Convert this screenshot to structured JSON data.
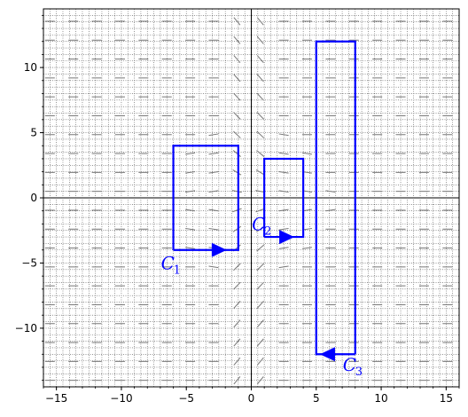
{
  "chart_data": {
    "type": "line",
    "title": "",
    "xlabel": "",
    "ylabel": "",
    "xlim": [
      -16,
      16
    ],
    "ylim": [
      -14.5,
      14.5
    ],
    "x_major_ticks": [
      -15,
      -10,
      -5,
      0,
      5,
      10,
      15
    ],
    "y_major_ticks": [
      -10,
      -5,
      0,
      5,
      10
    ],
    "x_tick_labels": [
      "−15",
      "−10",
      "−5",
      "0",
      "5",
      "10",
      "15"
    ],
    "y_tick_labels": [
      "−10",
      "−5",
      "0",
      "5",
      "10"
    ],
    "minor_step": 1,
    "grid": "dotted",
    "axes_through_origin": true,
    "slope_field": "gray dashes",
    "color_curves": "#0000ff",
    "color_grid": "#555555",
    "series": [
      {
        "name": "C1",
        "label_main": "C",
        "label_sub": "1",
        "vertices": [
          [
            -6,
            -4
          ],
          [
            -1,
            -4
          ],
          [
            -1,
            4
          ],
          [
            -6,
            4
          ],
          [
            -6,
            -4
          ]
        ],
        "arrow_at": [
          -2.5,
          -4
        ],
        "arrow_direction": "right",
        "label_at": [
          -6,
          -5
        ]
      },
      {
        "name": "C2",
        "label_main": "C",
        "label_sub": "2",
        "vertices": [
          [
            1,
            -3
          ],
          [
            4,
            -3
          ],
          [
            4,
            3
          ],
          [
            1,
            3
          ],
          [
            1,
            -3
          ]
        ],
        "arrow_at": [
          2.7,
          -3
        ],
        "arrow_direction": "right",
        "label_at": [
          1,
          -2
        ]
      },
      {
        "name": "C3",
        "label_main": "C",
        "label_sub": "3",
        "vertices": [
          [
            8,
            -12
          ],
          [
            8,
            12
          ],
          [
            5,
            12
          ],
          [
            5,
            -12
          ],
          [
            8,
            -12
          ]
        ],
        "arrow_at": [
          5.9,
          -12
        ],
        "arrow_direction": "left",
        "label_at": [
          8,
          -12.8
        ]
      }
    ]
  }
}
